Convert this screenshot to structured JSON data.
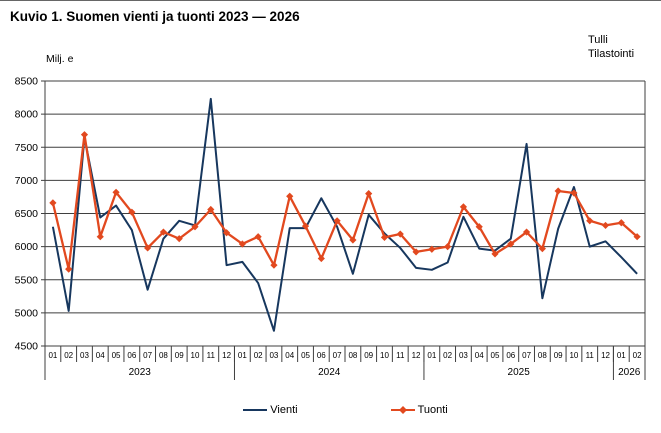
{
  "header": {
    "title": "Kuvio 1. Suomen vienti ja tuonti 2023 — 2026",
    "unit_label": "Milj. e",
    "source_line1": "Tulli",
    "source_line2": "Tilastointi"
  },
  "legend": {
    "vienti_label": "Vienti",
    "tuonti_label": "Tuonti"
  },
  "colors": {
    "vienti": "#17375E",
    "tuonti": "#E2491F",
    "grid": "#3F3F3F",
    "axis": "#3F3F3F"
  },
  "chart_data": {
    "type": "line",
    "title": "Kuvio 1. Suomen vienti ja tuonti 2023 — 2026",
    "xlabel": "",
    "ylabel": "Milj. e",
    "ylim": [
      4500,
      8500
    ],
    "ytick_step": 500,
    "ytick_labels": [
      "4500",
      "5000",
      "5500",
      "6000",
      "6500",
      "7000",
      "7500",
      "8000",
      "8500"
    ],
    "grid": true,
    "legend_position": "bottom",
    "year_groups": [
      {
        "year": "2023",
        "months": [
          "01",
          "02",
          "03",
          "04",
          "05",
          "06",
          "07",
          "08",
          "09",
          "10",
          "11",
          "12"
        ]
      },
      {
        "year": "2024",
        "months": [
          "01",
          "02",
          "03",
          "04",
          "05",
          "06",
          "07",
          "08",
          "09",
          "10",
          "11",
          "12"
        ]
      },
      {
        "year": "2025",
        "months": [
          "01",
          "02",
          "03",
          "04",
          "05",
          "06",
          "07",
          "08",
          "09",
          "10",
          "11",
          "12"
        ]
      },
      {
        "year": "2026",
        "months": [
          "01",
          "02"
        ]
      }
    ],
    "series": [
      {
        "name": "Vienti",
        "marker": "none",
        "values": [
          6300,
          5030,
          7650,
          6440,
          6620,
          6250,
          5350,
          6120,
          6390,
          6320,
          8230,
          5720,
          5770,
          5450,
          4730,
          6280,
          6280,
          6730,
          6300,
          5590,
          6480,
          6200,
          5980,
          5680,
          5650,
          5760,
          6450,
          5970,
          5940,
          6120,
          7550,
          5220,
          6270,
          6900,
          6000,
          6080,
          5840,
          5590
        ]
      },
      {
        "name": "Tuonti",
        "marker": "diamond",
        "values": [
          6660,
          5660,
          7690,
          6150,
          6820,
          6520,
          5980,
          6220,
          6120,
          6300,
          6560,
          6210,
          6040,
          6150,
          5720,
          6760,
          6310,
          5820,
          6390,
          6100,
          6800,
          6140,
          6190,
          5920,
          5960,
          6000,
          6600,
          6300,
          5890,
          6040,
          6220,
          5970,
          6840,
          6810,
          6390,
          6320,
          6360,
          6150
        ]
      }
    ]
  }
}
